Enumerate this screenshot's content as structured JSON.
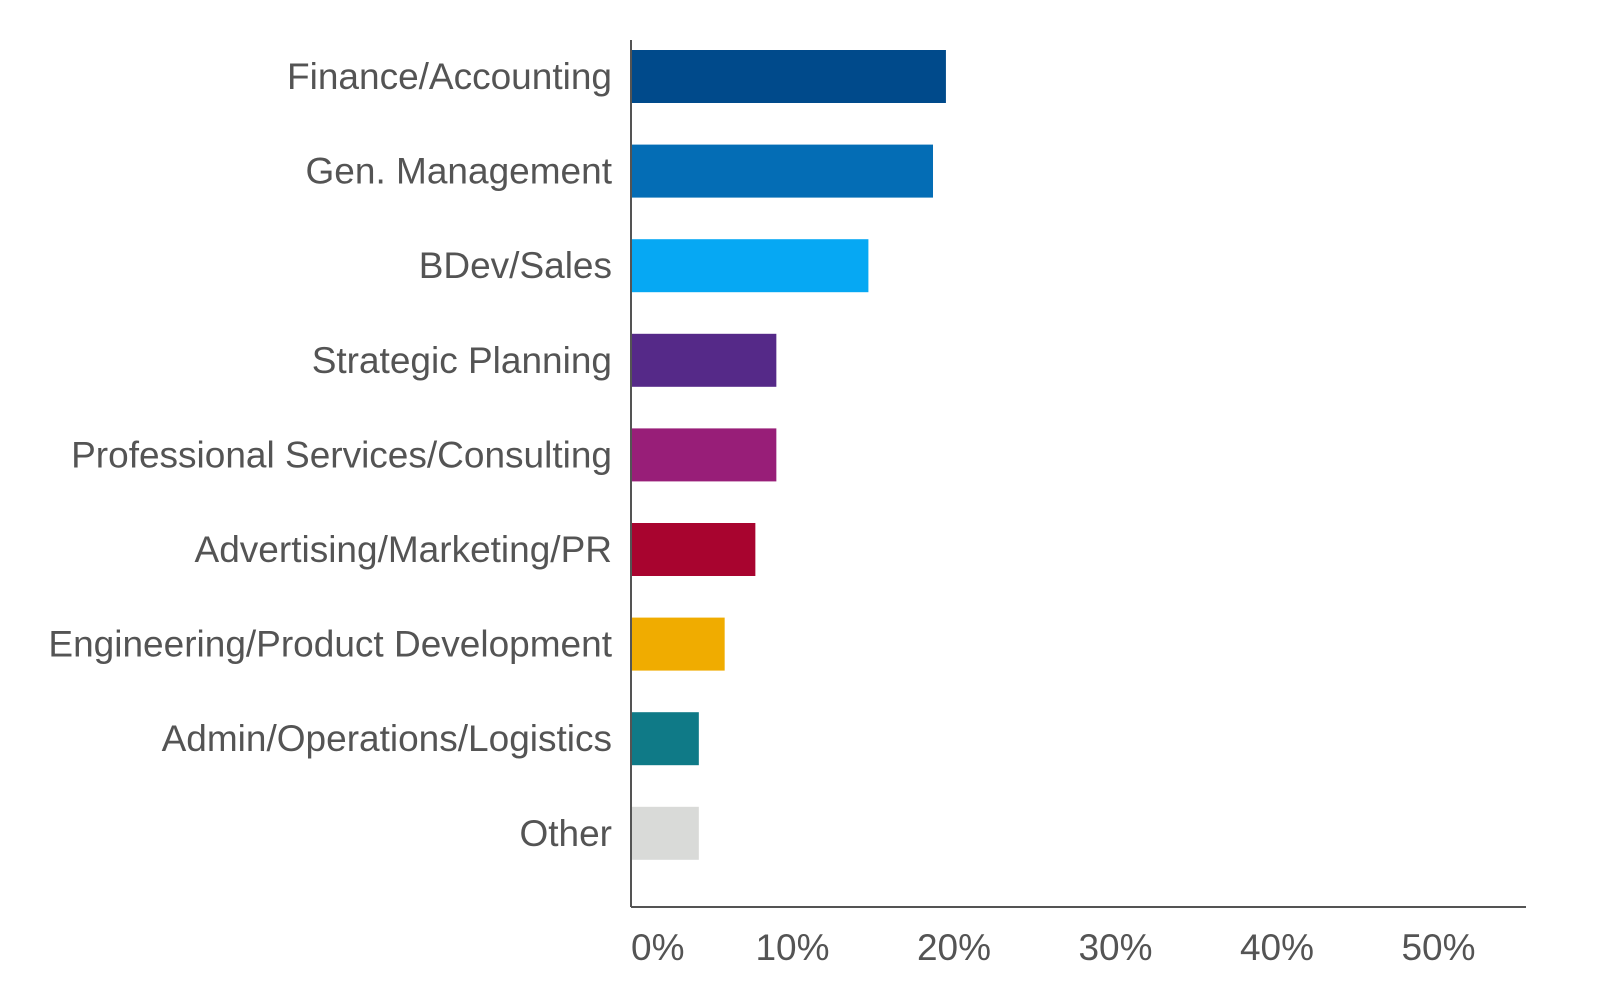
{
  "chart_data": {
    "type": "bar",
    "orientation": "horizontal",
    "title": "",
    "xlabel": "",
    "ylabel": "",
    "categories": [
      "Finance/Accounting",
      "Gen. Management",
      "BDev/Sales",
      "Strategic Planning",
      "Professional Services/Consulting",
      "Advertising/Marketing/PR",
      "Engineering/Product Development",
      "Admin/Operations/Logistics",
      "Other"
    ],
    "values": [
      19.5,
      18.7,
      14.7,
      9.0,
      9.0,
      7.7,
      5.8,
      4.2,
      4.2
    ],
    "colors": [
      "#004a8b",
      "#046db5",
      "#06a8f3",
      "#552988",
      "#981e78",
      "#a8042f",
      "#f0ac00",
      "#0f7a87",
      "#d9dad8"
    ],
    "xlim": [
      0,
      53
    ],
    "xticks": [
      0,
      10,
      20,
      30,
      40,
      50
    ],
    "xtick_labels": [
      "0%",
      "10%",
      "20%",
      "30%",
      "40%",
      "50%"
    ],
    "grid": false,
    "legend": "none"
  }
}
